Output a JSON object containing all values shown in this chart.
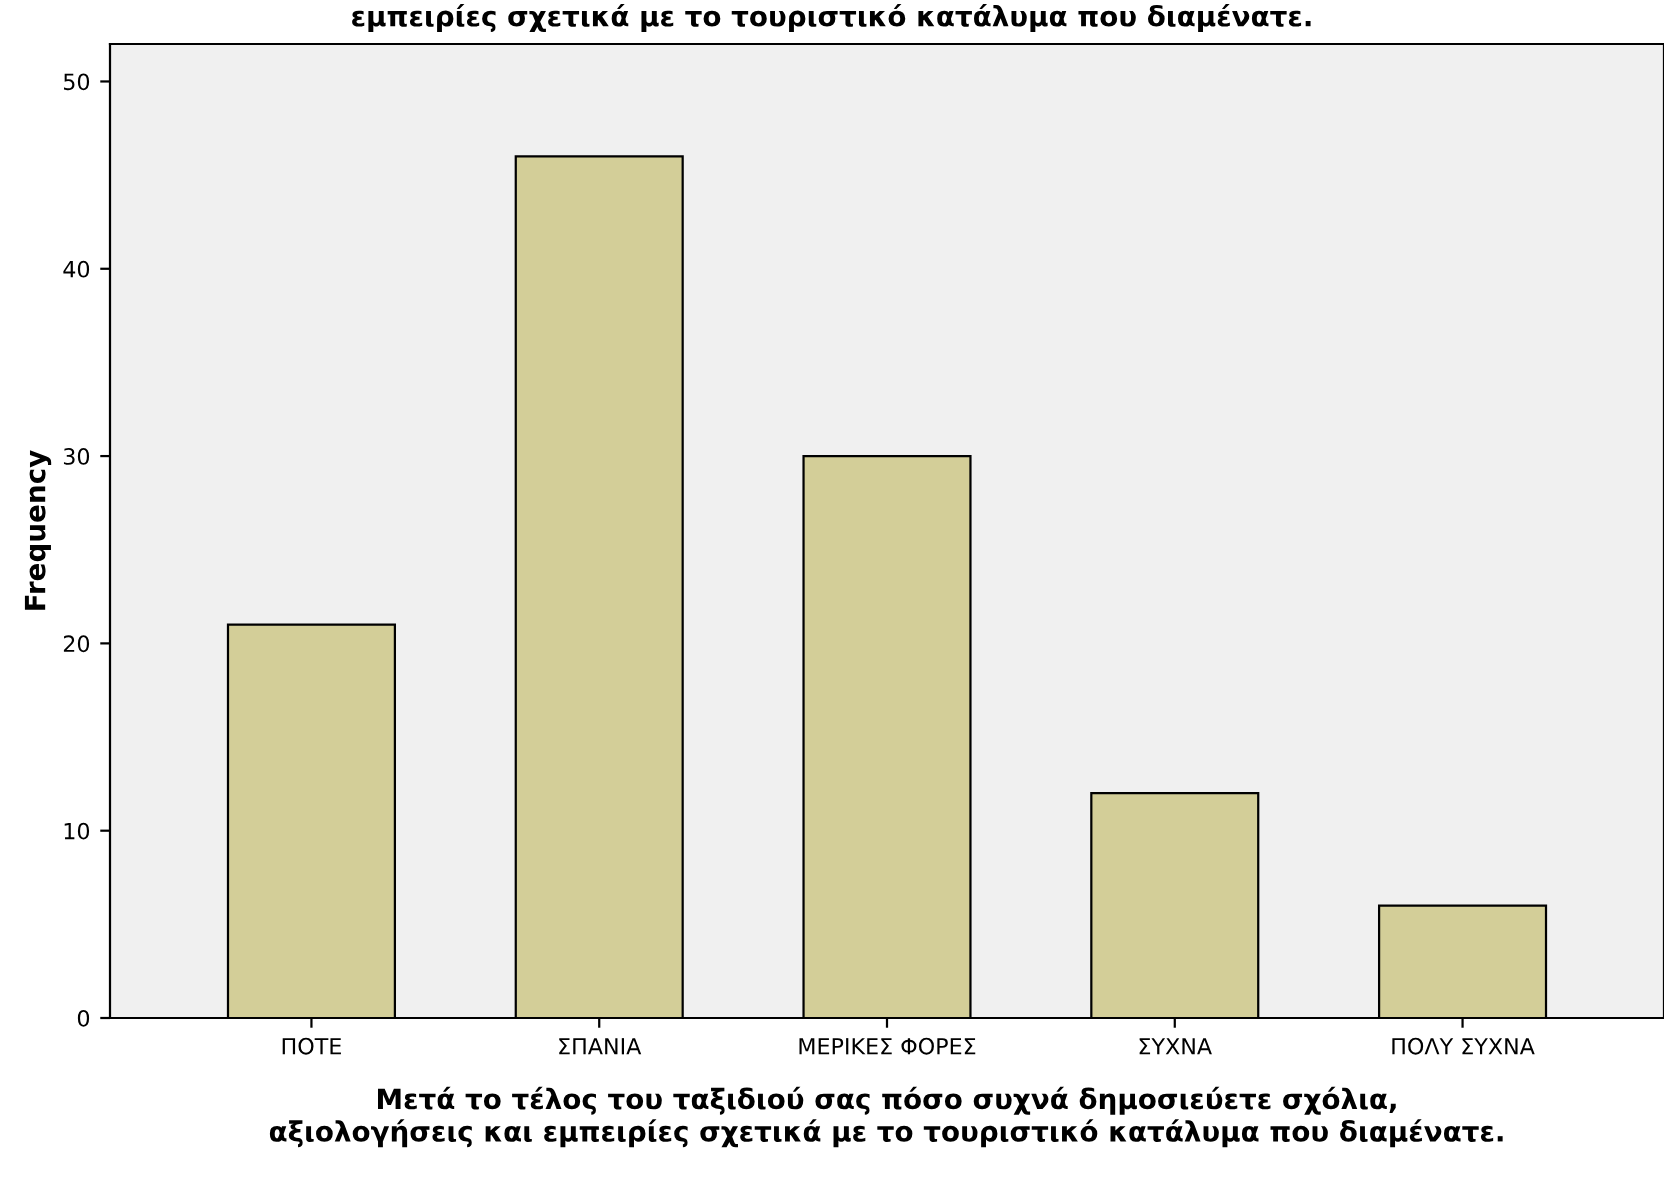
{
  "chart_data": {
    "type": "bar",
    "title": "εμπειρίες σχετικά με το τουριστικό κατάλυμα που διαμένατε.",
    "xlabel": "Μετά το τέλος του ταξιδιού σας πόσο συχνά δημοσιεύετε σχόλια,\nαξιολογήσεις και εμπειρίες σχετικά με το τουριστικό κατάλυμα που διαμένατε.",
    "ylabel": "Frequency",
    "categories": [
      "ΠΟΤΕ",
      "ΣΠΑΝΙΑ",
      "ΜΕΡΙΚΕΣ ΦΟΡΕΣ",
      "ΣΥΧΝΑ",
      "ΠΟΛΥ ΣΥΧΝΑ"
    ],
    "values": [
      21,
      46,
      30,
      12,
      6
    ],
    "color": "#d3ce98",
    "ylim": [
      0,
      52
    ],
    "yticks": [
      0,
      10,
      20,
      30,
      40,
      50
    ],
    "grid": false
  }
}
